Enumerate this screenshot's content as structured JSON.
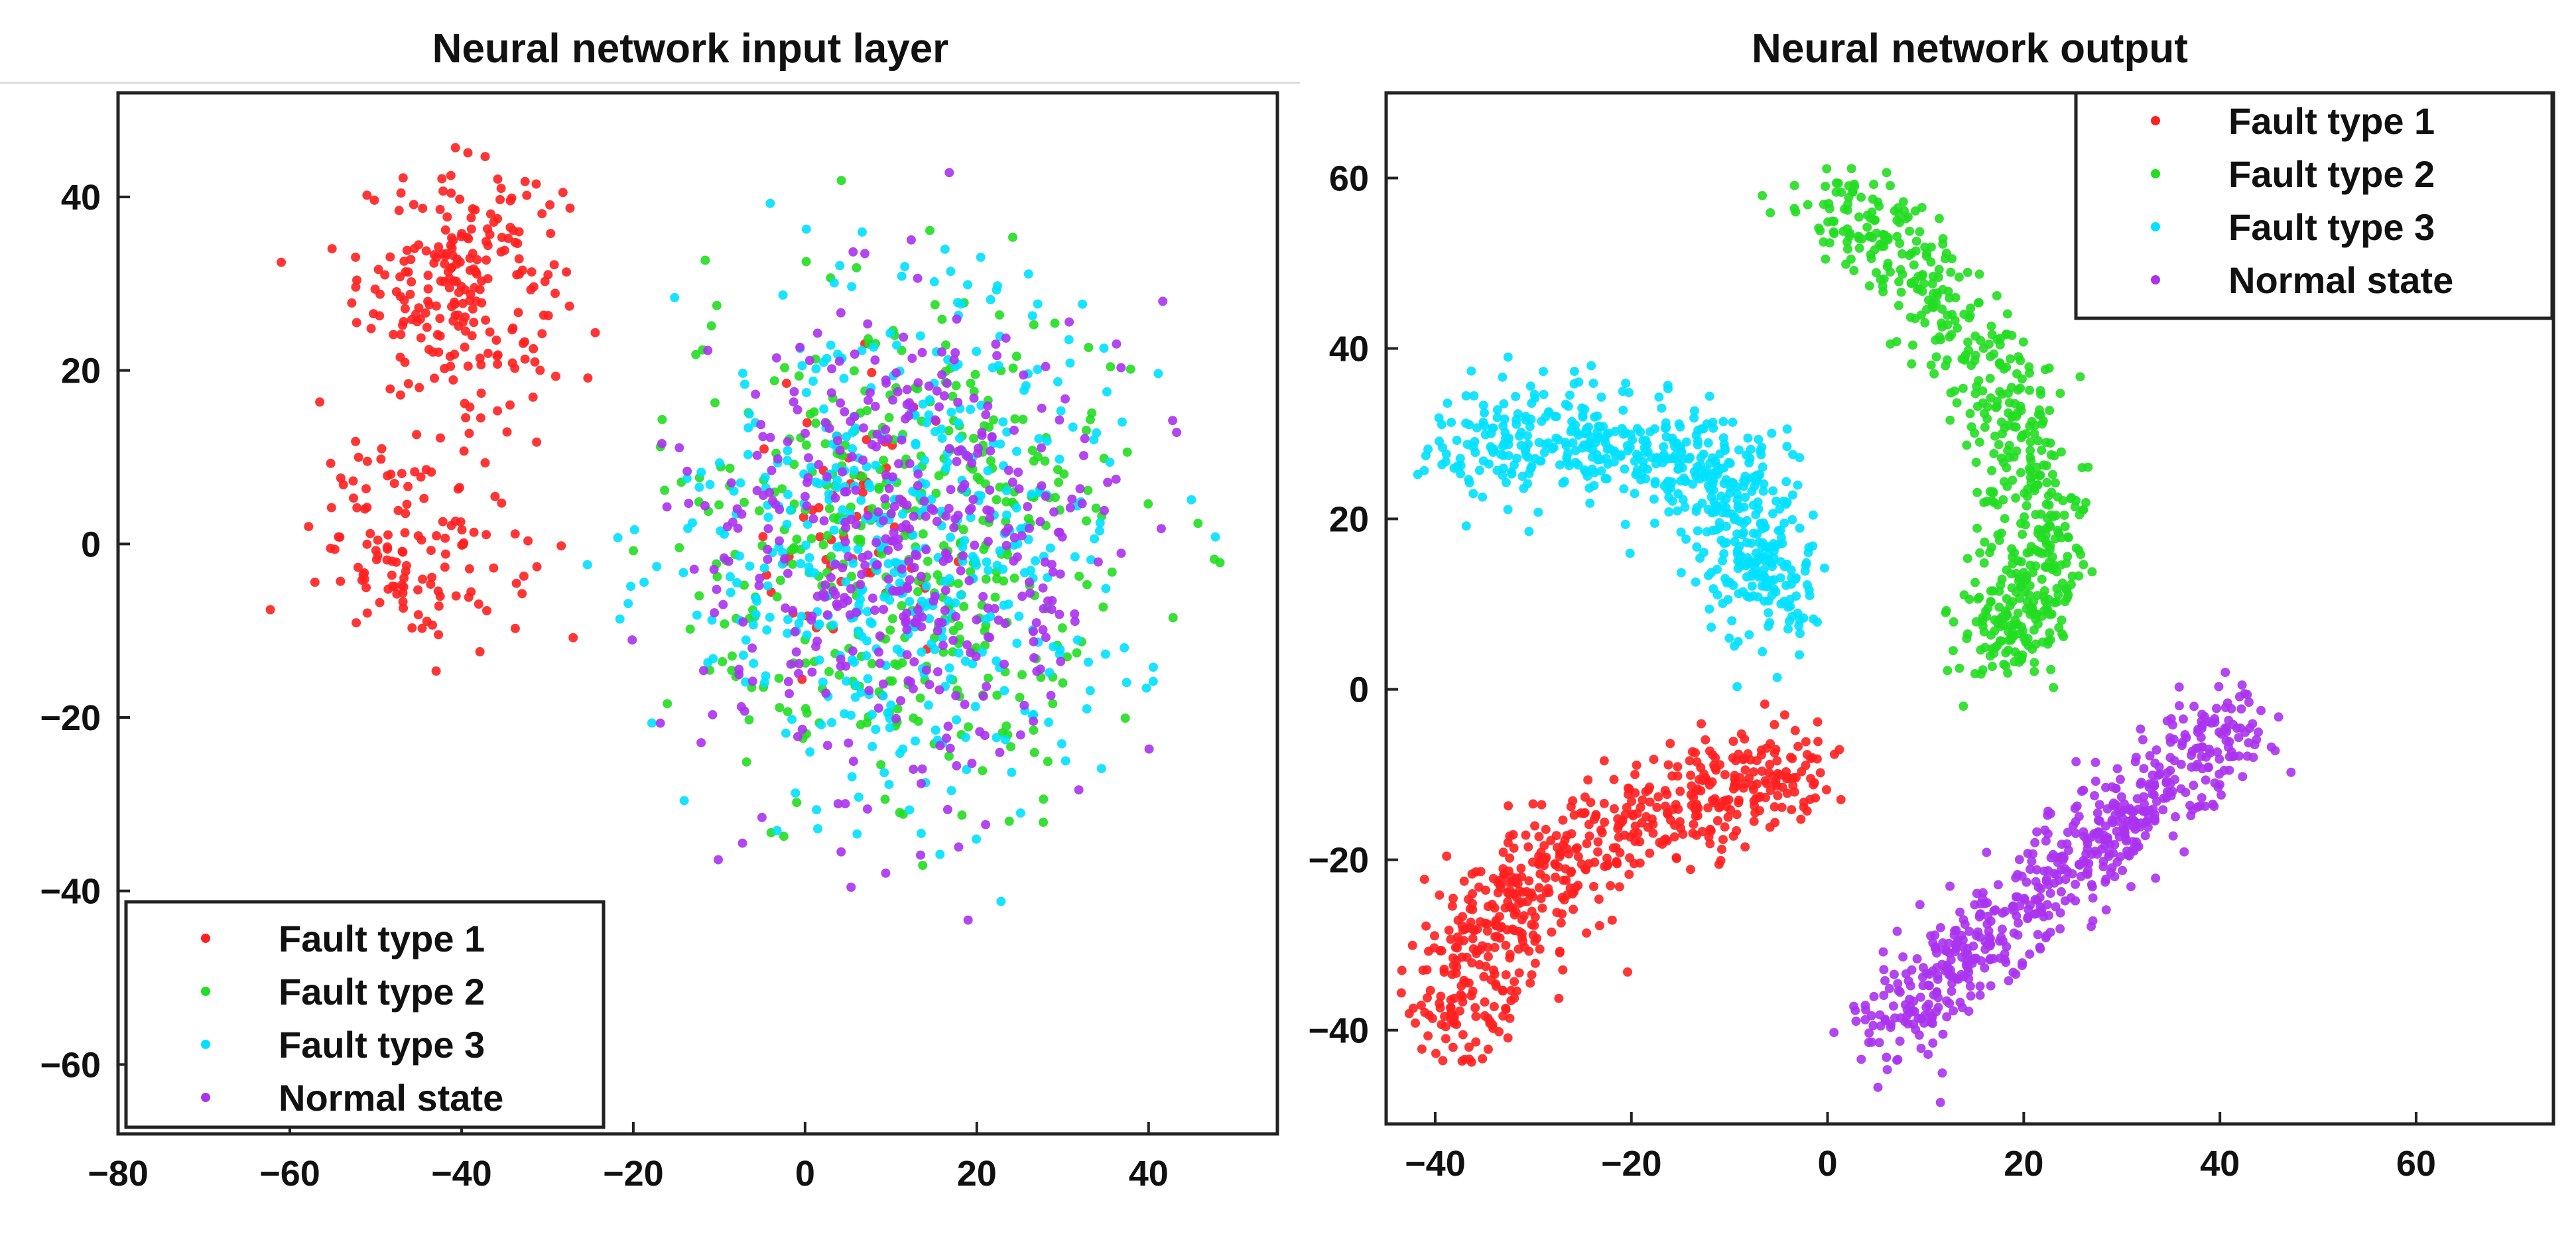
{
  "chart_data": [
    {
      "type": "scatter",
      "title": "Neural network input layer",
      "xlabel": "",
      "ylabel": "",
      "xlim": [
        -80,
        55
      ],
      "ylim": [
        -68,
        52
      ],
      "xticks": [
        -80,
        -60,
        -40,
        -20,
        0,
        20,
        40
      ],
      "yticks": [
        40,
        20,
        0,
        -20,
        -40,
        -60
      ],
      "legend_position": "bottom-left",
      "grid": false,
      "series": [
        {
          "name": "Fault type 1",
          "color": "#ff2020",
          "clusters": [
            {
              "center": [
                -40,
                30
              ],
              "spread": [
                8,
                9
              ],
              "count": 230
            },
            {
              "center": [
                -45,
                0
              ],
              "spread": [
                8,
                8
              ],
              "count": 130
            },
            {
              "center": [
                5,
                0
              ],
              "spread": [
                8,
                12
              ],
              "count": 60
            }
          ]
        },
        {
          "name": "Fault type 2",
          "color": "#22dd22",
          "clusters": [
            {
              "center": [
                12,
                0
              ],
              "spread": [
                18,
                20
              ],
              "count": 420
            }
          ]
        },
        {
          "name": "Fault type 3",
          "color": "#00e0ff",
          "clusters": [
            {
              "center": [
                12,
                0
              ],
              "spread": [
                18,
                20
              ],
              "count": 480
            }
          ]
        },
        {
          "name": "Normal state",
          "color": "#aa33ee",
          "clusters": [
            {
              "center": [
                12,
                0
              ],
              "spread": [
                16,
                19
              ],
              "count": 440
            }
          ]
        }
      ]
    },
    {
      "type": "scatter",
      "title": "Neural network output",
      "xlabel": "",
      "ylabel": "",
      "xlim": [
        -45,
        74
      ],
      "ylim": [
        -51,
        70
      ],
      "xticks": [
        -40,
        -20,
        0,
        20,
        40,
        60
      ],
      "yticks": [
        60,
        40,
        20,
        0,
        -20,
        -40
      ],
      "legend_position": "top-right",
      "grid": false,
      "series": [
        {
          "name": "Fault type 1",
          "color": "#ff2020",
          "path": [
            [
              -37,
              -40
            ],
            [
              -35,
              -30
            ],
            [
              -30,
              -22
            ],
            [
              -20,
              -15
            ],
            [
              -10,
              -12
            ],
            [
              -2,
              -9
            ]
          ],
          "width": 6,
          "count": 600
        },
        {
          "name": "Fault type 2",
          "color": "#22dd22",
          "path": [
            [
              0,
              58
            ],
            [
              10,
              48
            ],
            [
              18,
              35
            ],
            [
              22,
              22
            ],
            [
              20,
              10
            ],
            [
              18,
              5
            ]
          ],
          "width": 5,
          "count": 600
        },
        {
          "name": "Fault type 3",
          "color": "#00e0ff",
          "path": [
            [
              -38,
              29
            ],
            [
              -28,
              30
            ],
            [
              -18,
              28
            ],
            [
              -10,
              25
            ],
            [
              -6,
              15
            ],
            [
              -6,
              10
            ]
          ],
          "width": 6,
          "count": 600
        },
        {
          "name": "Normal state",
          "color": "#aa33ee",
          "path": [
            [
              5,
              -42
            ],
            [
              15,
              -30
            ],
            [
              25,
              -20
            ],
            [
              33,
              -13
            ],
            [
              42,
              -3
            ]
          ],
          "width": 5,
          "count": 600
        }
      ]
    }
  ]
}
